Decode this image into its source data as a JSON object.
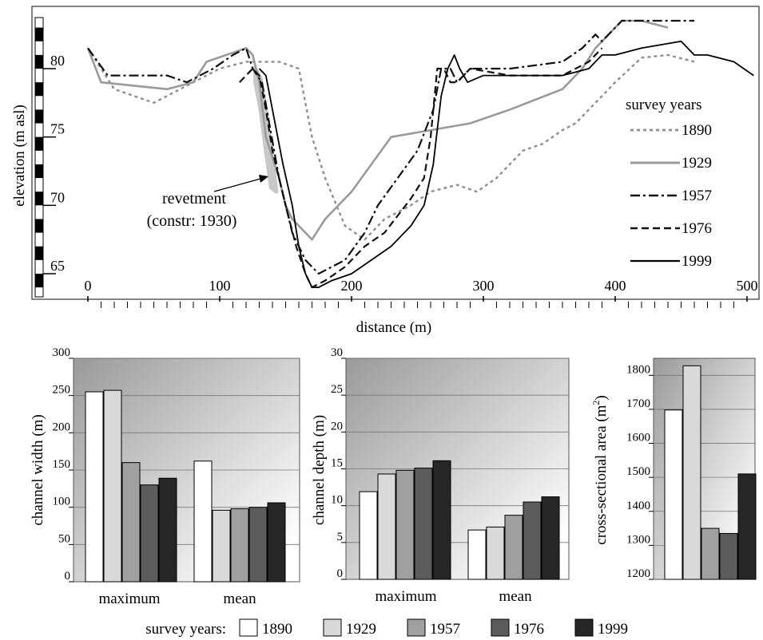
{
  "colors": {
    "1890": "#8f8f8f",
    "1929": "#9a9a9a",
    "1957": "#111111",
    "1976": "#111111",
    "1999": "#000000",
    "bar_1890": "#ffffff",
    "bar_1929": "#d9d9d9",
    "bar_1957": "#a0a0a0",
    "bar_1976": "#5c5c5c",
    "bar_1999": "#262626",
    "panel_gradient_dark": "#9a9a9a",
    "panel_gradient_light": "#ffffff",
    "revetment": "#c8c8c8"
  },
  "chart_data": [
    {
      "type": "line",
      "xlabel": "distance (m)",
      "ylabel": "elevation (m asl)",
      "xticks": [
        "0",
        "100",
        "200",
        "300",
        "400",
        "500"
      ],
      "yticks": [
        "65",
        "70",
        "75",
        "80"
      ],
      "xlim": [
        -15,
        508
      ],
      "ylim": [
        62,
        86.5
      ],
      "legend_title": "survey years",
      "legend_position": "right",
      "annotation": [
        "revetment",
        "(constr: 1930)"
      ],
      "series": [
        {
          "name": "1890",
          "style": "dotted",
          "x": [
            0,
            20,
            50,
            70,
            100,
            120,
            145,
            160,
            170,
            180,
            195,
            210,
            225,
            245,
            260,
            280,
            295,
            310,
            330,
            345,
            360,
            370,
            385,
            400,
            420,
            440,
            460
          ],
          "y": [
            81.5,
            78.5,
            77.5,
            78.5,
            80,
            80.5,
            80.5,
            80,
            75,
            72,
            68.5,
            67.5,
            69,
            70,
            71,
            71.5,
            71,
            72,
            74,
            74.5,
            75.5,
            76,
            77.5,
            79,
            80.8,
            81,
            80.5
          ]
        },
        {
          "name": "1929",
          "style": "solid",
          "x": [
            0,
            10,
            60,
            80,
            90,
            120,
            125,
            130,
            135,
            145,
            150,
            155,
            160,
            170,
            180,
            200,
            230,
            260,
            290,
            320,
            360,
            375,
            385,
            395,
            405,
            420,
            440
          ],
          "y": [
            81.5,
            79,
            78.5,
            79,
            80.5,
            81.5,
            81,
            79,
            75,
            72,
            70,
            69,
            68.5,
            67.5,
            69,
            71,
            75,
            75.5,
            76,
            77,
            78.5,
            80,
            81.5,
            82.5,
            83.5,
            83.5,
            83
          ]
        },
        {
          "name": "1957",
          "style": "dashdot",
          "x": [
            0,
            15,
            60,
            75,
            95,
            110,
            120,
            125,
            132,
            145,
            150,
            155,
            165,
            175,
            185,
            195,
            210,
            220,
            235,
            250,
            262,
            268,
            275,
            280,
            290,
            320,
            360,
            375,
            385,
            390,
            405,
            430,
            460
          ],
          "y": [
            81.5,
            79.5,
            79.5,
            79,
            80,
            81,
            81.5,
            80,
            79,
            72,
            70,
            68,
            66,
            65,
            65.5,
            66,
            68,
            70,
            72,
            74,
            77,
            80,
            80,
            79,
            80,
            80,
            80.5,
            81.5,
            82.5,
            82,
            83.5,
            83.5,
            83.5
          ]
        },
        {
          "name": "1976",
          "style": "dashed",
          "x": [
            115,
            125,
            130,
            135,
            140,
            150,
            158,
            165,
            170,
            180,
            195,
            210,
            225,
            245,
            255,
            260,
            265,
            270,
            275,
            280,
            290,
            320,
            360,
            380,
            390
          ],
          "y": [
            79,
            80,
            79.5,
            77,
            74,
            70,
            67,
            65,
            64,
            64.5,
            65.5,
            67,
            68,
            70.5,
            72,
            75,
            80,
            80,
            79,
            79,
            80,
            79.5,
            79.5,
            80.5,
            81.5
          ]
        },
        {
          "name": "1999",
          "style": "solid",
          "x": [
            130,
            135,
            140,
            148,
            155,
            160,
            165,
            170,
            175,
            185,
            200,
            215,
            230,
            245,
            255,
            262,
            268,
            273,
            278,
            282,
            288,
            300,
            330,
            360,
            380,
            390,
            400,
            420,
            450,
            460,
            470,
            490,
            505
          ],
          "y": [
            80,
            79.5,
            77,
            73,
            70,
            67,
            65,
            64,
            64,
            64.5,
            65,
            66,
            67,
            68.5,
            70,
            73,
            78,
            80,
            81,
            80,
            79,
            79.5,
            79.5,
            79.5,
            80,
            81,
            81,
            81.5,
            82,
            81,
            81,
            80.5,
            79.5
          ]
        }
      ]
    },
    {
      "type": "bar",
      "ylabel": "channel width (m)",
      "categories": [
        "maximum",
        "mean"
      ],
      "yticks": [
        "0",
        "50",
        "100",
        "150",
        "200",
        "250",
        "300"
      ],
      "ylim": [
        0,
        300
      ],
      "series": [
        {
          "name": "1890",
          "values": [
            255,
            162
          ]
        },
        {
          "name": "1929",
          "values": [
            257,
            96
          ]
        },
        {
          "name": "1957",
          "values": [
            160,
            98
          ]
        },
        {
          "name": "1976",
          "values": [
            130,
            100
          ]
        },
        {
          "name": "1999",
          "values": [
            139,
            106
          ]
        }
      ]
    },
    {
      "type": "bar",
      "ylabel": "channel depth (m)",
      "categories": [
        "maximum",
        "mean"
      ],
      "yticks": [
        "0",
        "5",
        "10",
        "15",
        "20",
        "25",
        "30"
      ],
      "ylim": [
        0,
        30
      ],
      "series": [
        {
          "name": "1890",
          "values": [
            11.9,
            6.7
          ]
        },
        {
          "name": "1929",
          "values": [
            14.3,
            7.1
          ]
        },
        {
          "name": "1957",
          "values": [
            14.8,
            8.7
          ]
        },
        {
          "name": "1976",
          "values": [
            15.1,
            10.5
          ]
        },
        {
          "name": "1999",
          "values": [
            16.1,
            11.2
          ]
        }
      ]
    },
    {
      "type": "bar",
      "ylabel": "cross-sectional area (m2)",
      "ylabel_main": "cross-sectional area (m",
      "ylabel_sup": "2",
      "ylabel_close": ")",
      "categories": [
        ""
      ],
      "yticks": [
        "1200",
        "1300",
        "1400",
        "1500",
        "1600",
        "1700",
        "1800"
      ],
      "ylim": [
        1200,
        1850
      ],
      "series": [
        {
          "name": "1890",
          "values": [
            1698
          ]
        },
        {
          "name": "1929",
          "values": [
            1828
          ]
        },
        {
          "name": "1957",
          "values": [
            1350
          ]
        },
        {
          "name": "1976",
          "values": [
            1335
          ]
        },
        {
          "name": "1999",
          "values": [
            1510
          ]
        }
      ]
    }
  ],
  "bottom_legend": {
    "title": "survey years:",
    "items": [
      "1890",
      "1929",
      "1957",
      "1976",
      "1999"
    ]
  }
}
